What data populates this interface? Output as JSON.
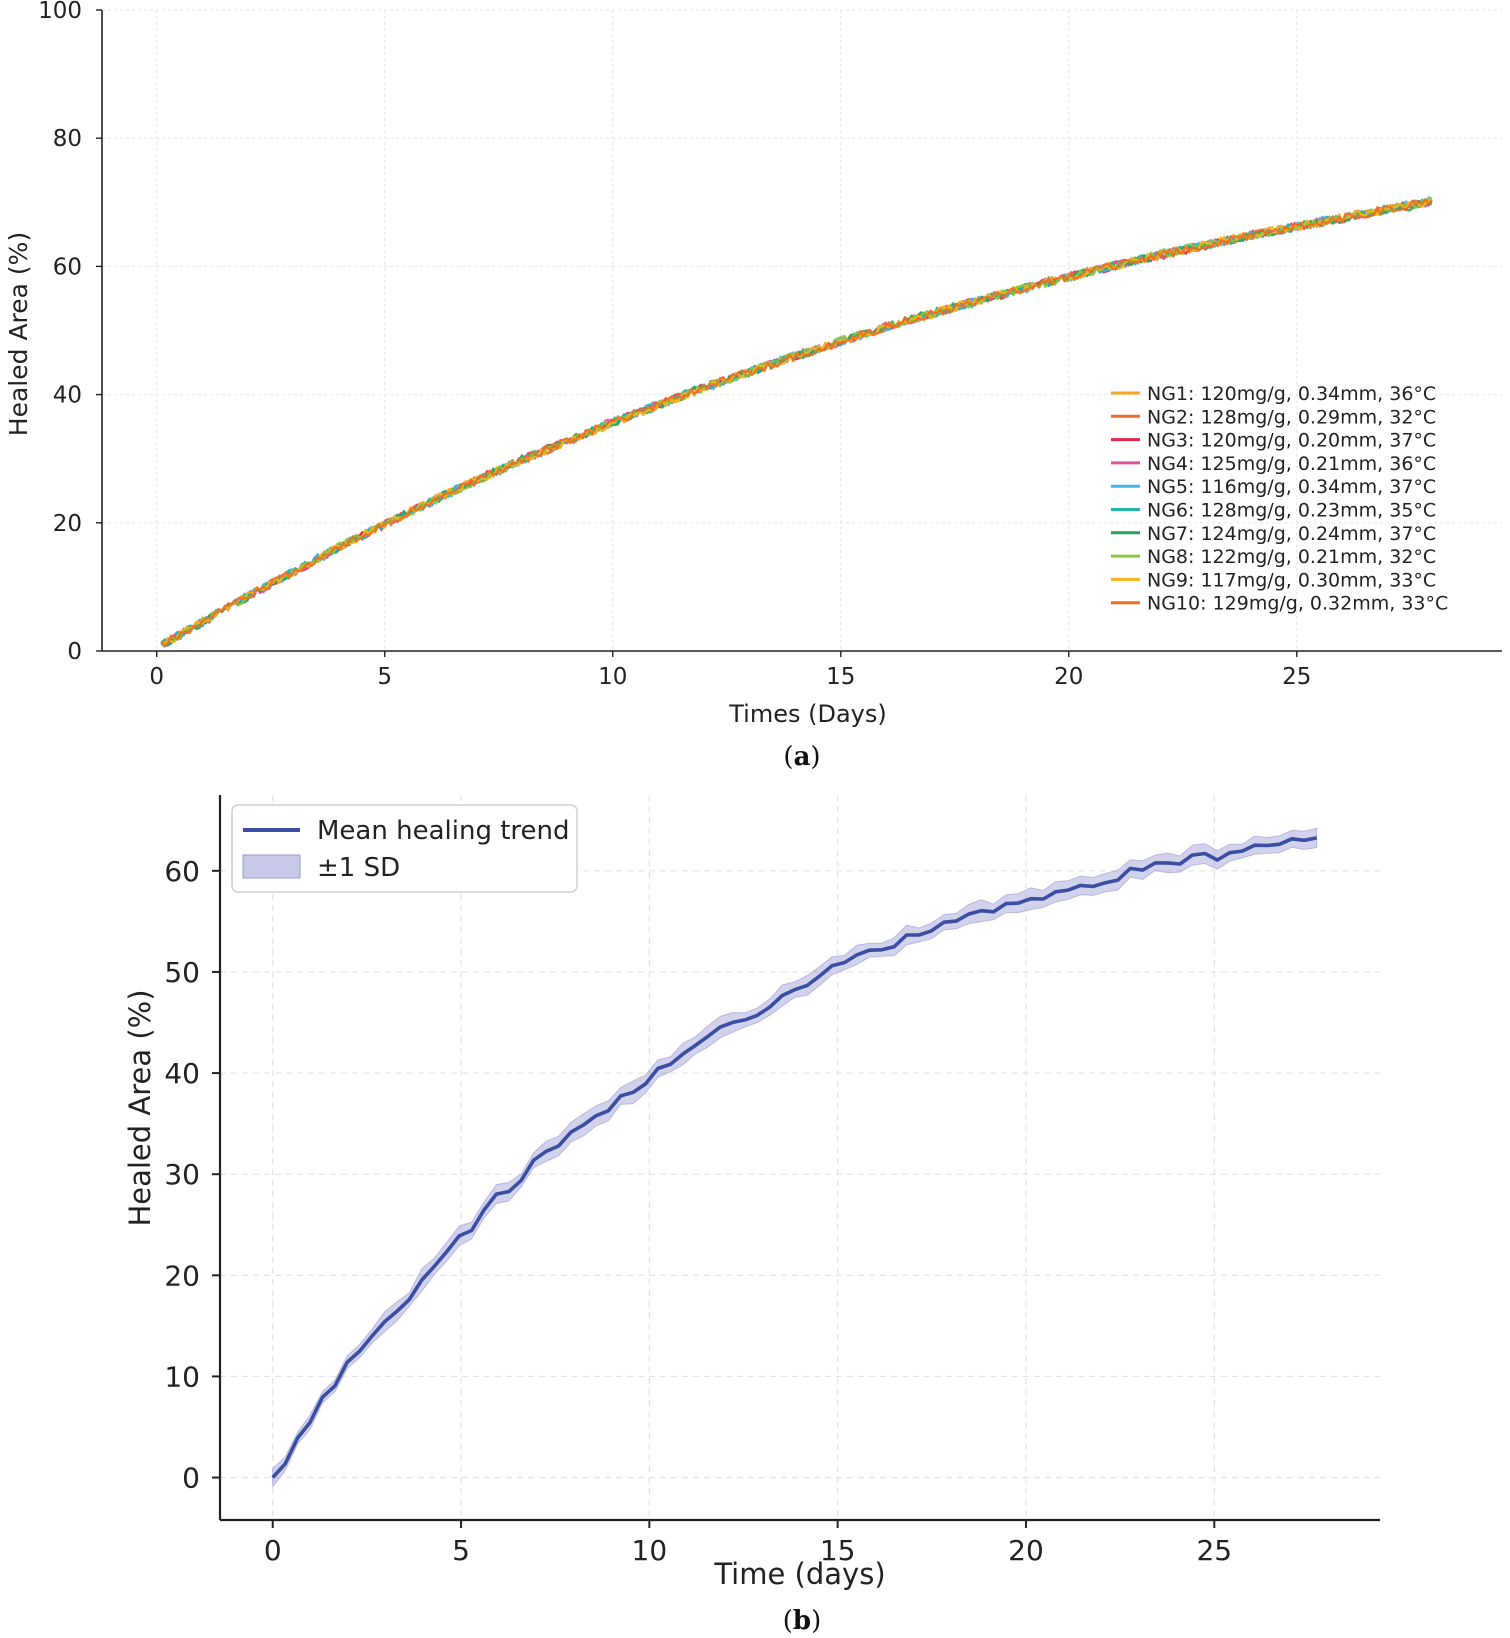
{
  "chart_data": [
    {
      "type": "line",
      "panel_label": "a",
      "title": "",
      "xlabel": "Times (Days)",
      "ylabel": "Healed Area (%)",
      "xlim": [
        -1.2,
        29.5
      ],
      "ylim": [
        0,
        100
      ],
      "xticks": [
        0,
        5,
        10,
        15,
        20,
        25
      ],
      "yticks": [
        0,
        20,
        40,
        60,
        80,
        100
      ],
      "grid": true,
      "legend_position": "lower-right",
      "model": {
        "form": "A*(1-exp(-x/tau))",
        "A": 100,
        "tau": 22.7,
        "x_start": 0.1,
        "x_end": 28,
        "note": "all ten series overlap closely"
      },
      "x_samples": [
        0,
        2,
        4,
        6,
        8,
        10,
        12,
        14,
        16,
        18,
        20,
        22,
        24,
        26,
        28
      ],
      "series": [
        {
          "name": "NG1: 120mg/g, 0.34mm, 36°C",
          "color": "#f5a623",
          "values": [
            0.5,
            8.5,
            16.2,
            23.3,
            29.8,
            35.6,
            41.1,
            46.0,
            50.6,
            54.6,
            58.4,
            61.8,
            64.9,
            67.6,
            70.2
          ]
        },
        {
          "name": "NG2: 128mg/g, 0.29mm, 32°C",
          "color": "#ef6a32",
          "values": [
            0.4,
            8.6,
            16.3,
            23.2,
            29.7,
            35.7,
            41.0,
            46.1,
            50.5,
            54.7,
            58.3,
            61.9,
            64.8,
            67.7,
            70.1
          ]
        },
        {
          "name": "NG3: 120mg/g, 0.20mm, 37°C",
          "color": "#e8264d",
          "values": [
            0.5,
            8.4,
            16.1,
            23.4,
            29.9,
            35.6,
            41.2,
            45.9,
            50.7,
            54.6,
            58.5,
            61.7,
            64.9,
            67.5,
            70.3
          ]
        },
        {
          "name": "NG4: 125mg/g, 0.21mm, 36°C",
          "color": "#e0529c",
          "values": [
            0.6,
            8.5,
            16.2,
            23.3,
            29.8,
            35.8,
            41.1,
            46.0,
            50.6,
            54.7,
            58.4,
            61.8,
            64.8,
            67.6,
            70.2
          ]
        },
        {
          "name": "NG5: 116mg/g, 0.34mm, 37°C",
          "color": "#41b6e6",
          "values": [
            0.4,
            8.5,
            16.3,
            23.2,
            29.7,
            35.6,
            41.0,
            46.1,
            50.5,
            54.6,
            58.3,
            61.9,
            64.9,
            67.7,
            70.4
          ]
        },
        {
          "name": "NG6: 128mg/g, 0.23mm, 35°C",
          "color": "#1fb5b0",
          "values": [
            0.5,
            8.6,
            16.1,
            23.4,
            29.8,
            35.7,
            41.2,
            46.0,
            50.6,
            54.5,
            58.4,
            61.8,
            64.8,
            67.6,
            70.2
          ]
        },
        {
          "name": "NG7: 124mg/g, 0.24mm, 37°C",
          "color": "#2ca35a",
          "values": [
            0.5,
            8.4,
            16.2,
            23.3,
            29.9,
            35.6,
            41.1,
            45.9,
            50.7,
            54.7,
            58.5,
            61.7,
            64.9,
            67.5,
            70.0
          ]
        },
        {
          "name": "NG8: 122mg/g, 0.21mm, 32°C",
          "color": "#8cc63f",
          "values": [
            0.6,
            8.5,
            16.3,
            23.2,
            29.8,
            35.7,
            41.0,
            46.1,
            50.6,
            54.6,
            58.3,
            61.9,
            64.8,
            67.6,
            70.2
          ]
        },
        {
          "name": "NG9: 117mg/g, 0.30mm, 33°C",
          "color": "#fbb316",
          "values": [
            0.4,
            8.6,
            16.2,
            23.4,
            29.7,
            35.6,
            41.1,
            46.0,
            50.5,
            54.7,
            58.4,
            61.8,
            64.9,
            67.7,
            70.1
          ]
        },
        {
          "name": "NG10: 129mg/g, 0.32mm, 33°C",
          "color": "#f26b21",
          "values": [
            0.5,
            8.5,
            16.1,
            23.3,
            29.8,
            35.7,
            41.2,
            45.9,
            50.6,
            54.6,
            58.5,
            61.7,
            64.8,
            67.5,
            70.3
          ]
        }
      ]
    },
    {
      "type": "line",
      "panel_label": "b",
      "title": "",
      "xlabel": "Time (days)",
      "ylabel": "Healed Area (%)",
      "xlim": [
        -1.4,
        29.4
      ],
      "ylim": [
        -4.2,
        67.5
      ],
      "xticks": [
        0,
        5,
        10,
        15,
        20,
        25
      ],
      "yticks": [
        0,
        10,
        20,
        30,
        40,
        50,
        60
      ],
      "grid": true,
      "legend_position": "top-left",
      "series": [
        {
          "name": "Mean healing trend",
          "color": "#3a4fa3",
          "x": [
            0,
            1,
            2,
            3,
            4,
            5,
            6,
            7,
            8,
            9,
            10,
            11,
            12,
            13,
            14,
            15,
            16,
            17,
            18,
            19,
            20,
            21,
            22,
            23,
            24,
            25,
            26,
            27,
            28
          ],
          "values": [
            0,
            5.6,
            11.3,
            15.2,
            19.8,
            23.8,
            27.8,
            31.2,
            34.1,
            36.9,
            39.5,
            42.1,
            44.5,
            46.4,
            48.6,
            50.4,
            51.9,
            53.4,
            55.0,
            56.2,
            57.1,
            58.0,
            59.1,
            60.2,
            60.9,
            61.5,
            62.0,
            62.6,
            63.1
          ]
        }
      ],
      "band": {
        "name": "±1 SD",
        "color": "#9b9bd6",
        "sd": [
          0.8,
          0.7,
          0.8,
          0.8,
          0.9,
          0.8,
          0.9,
          0.8,
          0.9,
          0.9,
          0.9,
          0.9,
          0.9,
          0.9,
          0.9,
          0.9,
          0.8,
          0.9,
          0.8,
          0.9,
          0.9,
          0.9,
          0.8,
          0.8,
          0.8,
          0.8,
          0.8,
          0.8,
          0.8
        ]
      }
    }
  ]
}
